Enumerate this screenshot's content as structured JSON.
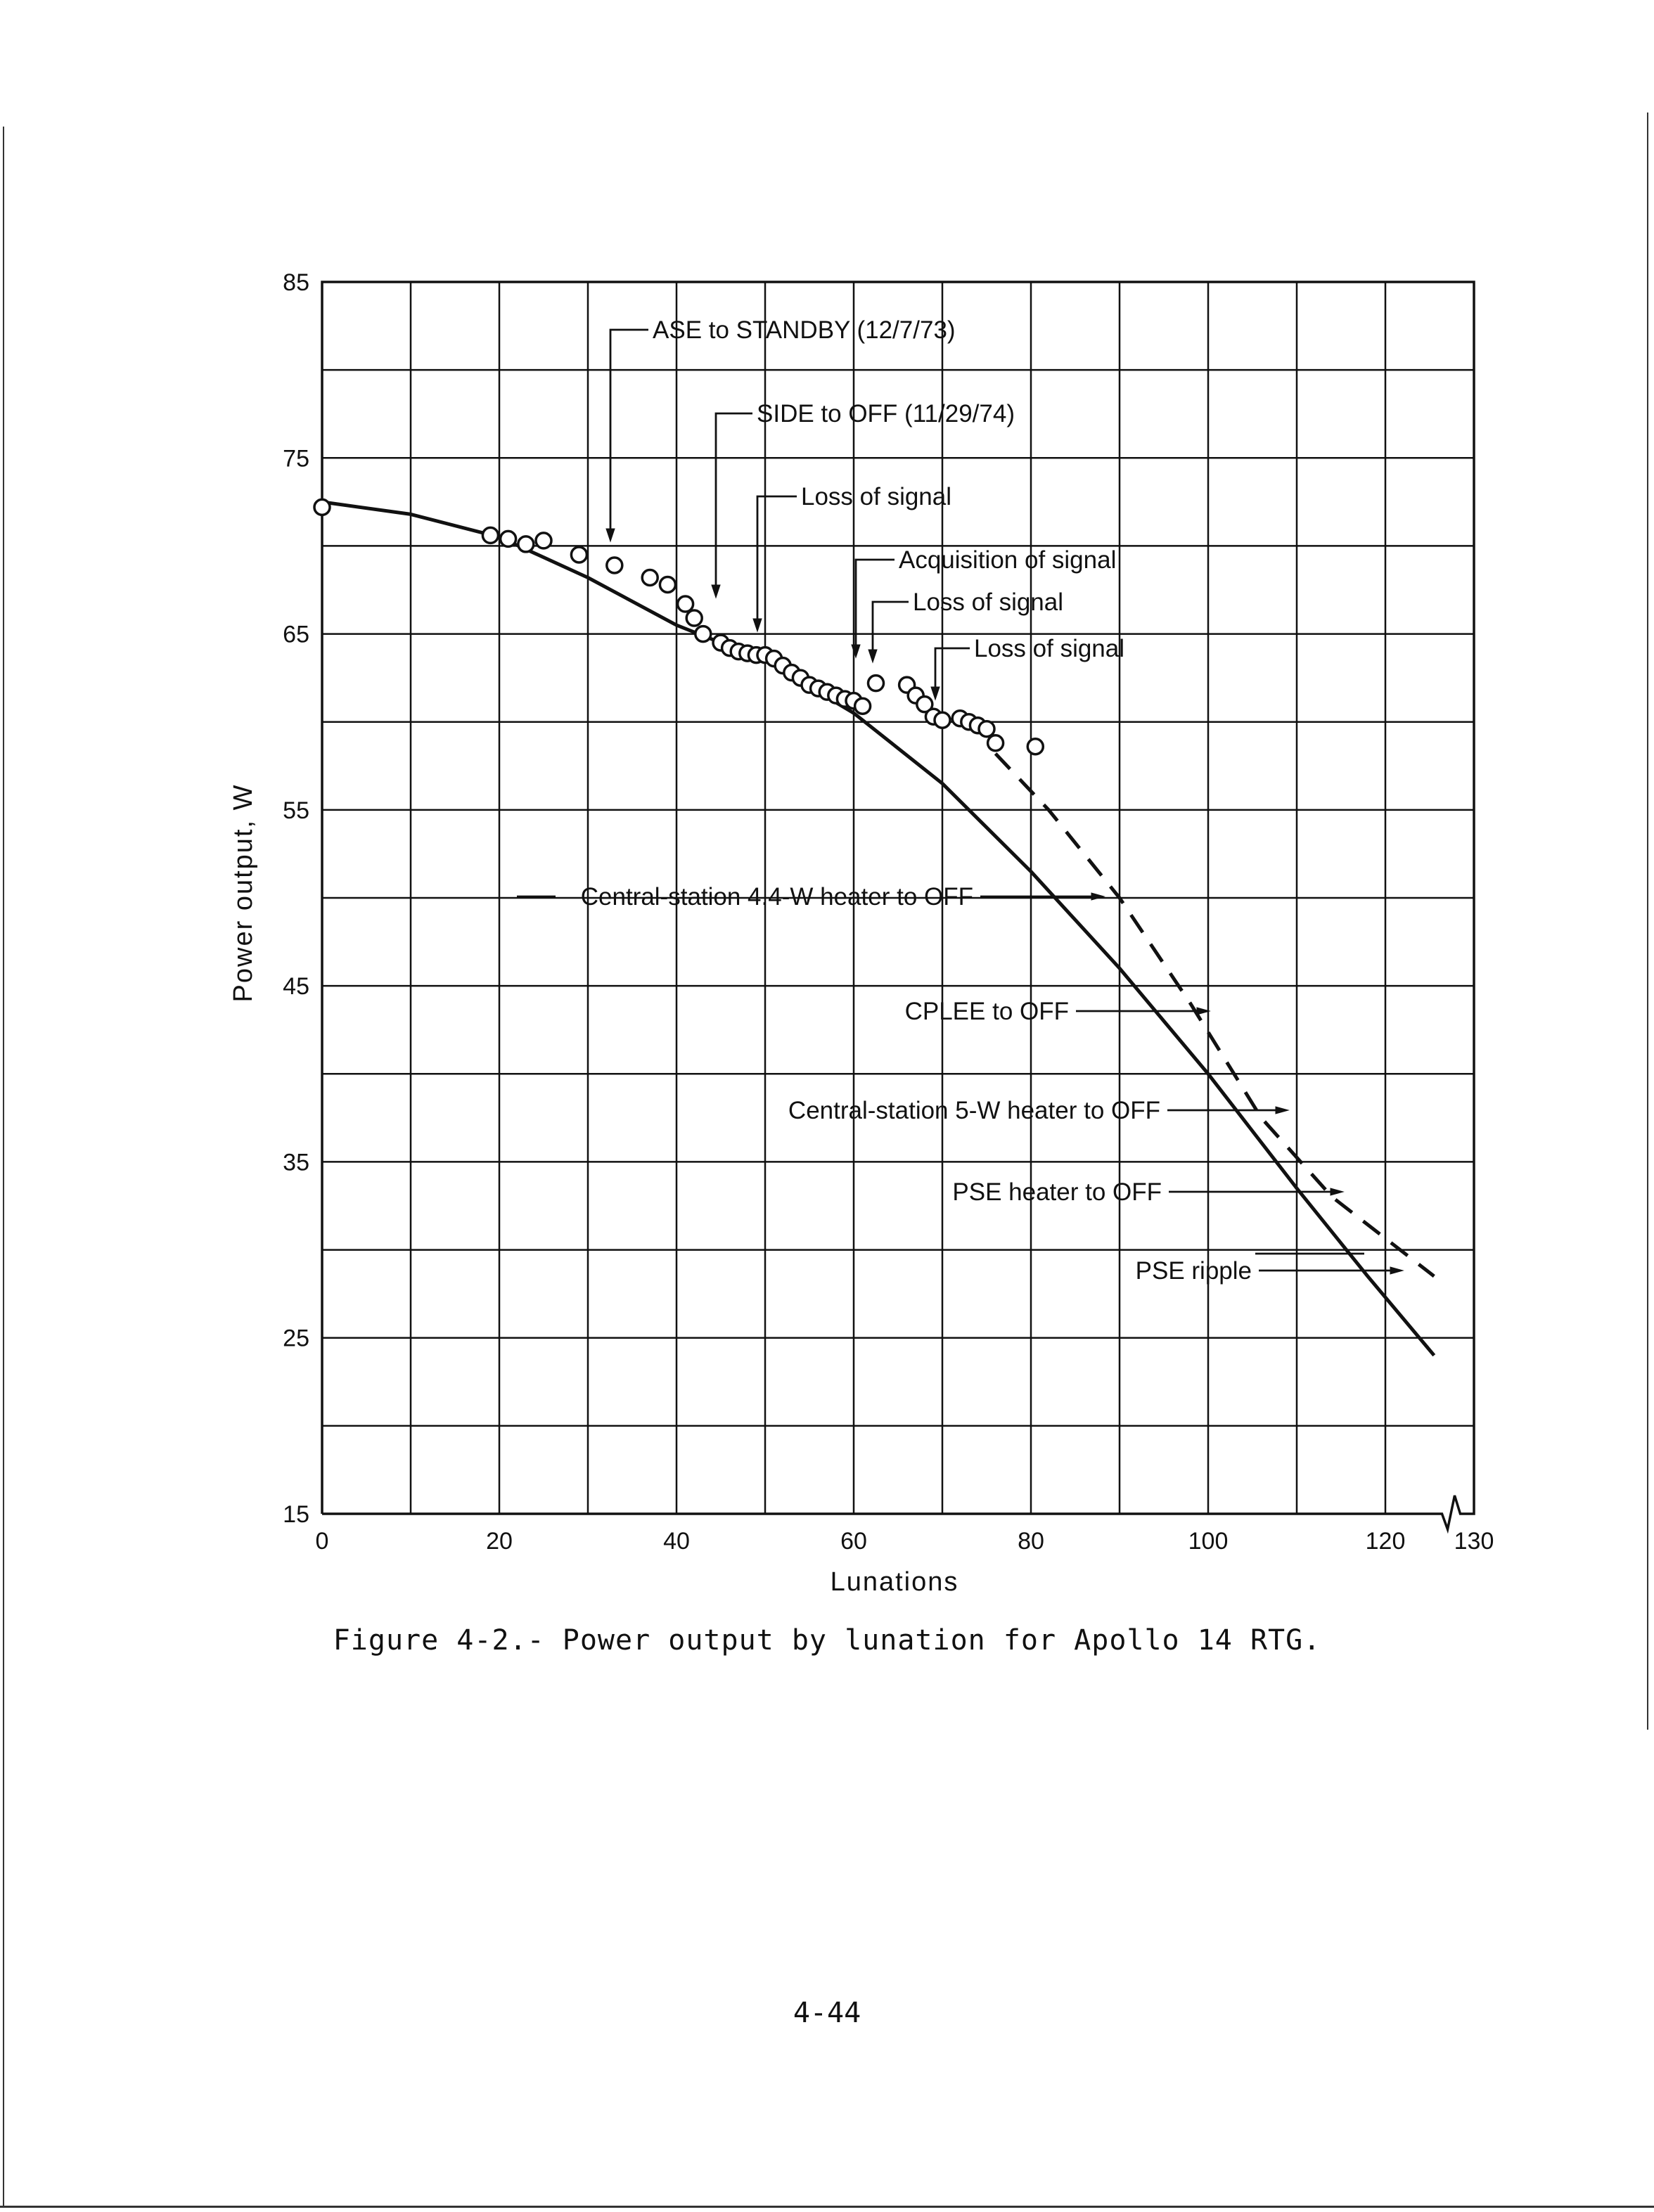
{
  "chart_data": {
    "type": "line",
    "xlabel": "Lunations",
    "ylabel": "Power output, W",
    "xlim": [
      0,
      130
    ],
    "ylim": [
      15,
      85
    ],
    "x_ticks": [
      "0",
      "20",
      "40",
      "60",
      "80",
      "100",
      "120",
      "130"
    ],
    "y_ticks": [
      "15",
      "25",
      "35",
      "45",
      "55",
      "65",
      "75",
      "85"
    ],
    "grid": true,
    "axis_break": "x-axis between 120 and 130",
    "series": [
      {
        "style": "solid",
        "x": [
          0,
          10,
          20,
          30,
          40,
          50,
          60,
          70,
          80,
          90,
          100,
          110,
          118,
          125.5
        ],
        "y": [
          72.5,
          71.8,
          70.5,
          68.2,
          65.5,
          63.5,
          60.5,
          56.5,
          51.5,
          46,
          40,
          33.5,
          28.5,
          24
        ]
      },
      {
        "style": "dashed",
        "x": [
          76,
          82,
          90,
          98,
          106,
          114,
          125.5
        ],
        "y": [
          58.2,
          55,
          50,
          44,
          37.5,
          33,
          28.5
        ]
      },
      {
        "style": "circles",
        "x": [
          0,
          19,
          21,
          23,
          25,
          29,
          33,
          37,
          39,
          41,
          42,
          43,
          45,
          46,
          47,
          48,
          49,
          50,
          51,
          52,
          53,
          54,
          55,
          56,
          57,
          58,
          59,
          60,
          61,
          62.5,
          66,
          67,
          68,
          69,
          70,
          72,
          73,
          74,
          75,
          76,
          80.5
        ],
        "y": [
          72.2,
          70.6,
          70.4,
          70.1,
          70.3,
          69.5,
          68.9,
          68.2,
          67.8,
          66.7,
          65.9,
          65,
          64.5,
          64.2,
          64,
          63.9,
          63.8,
          63.8,
          63.6,
          63.2,
          62.8,
          62.5,
          62.1,
          61.9,
          61.7,
          61.5,
          61.3,
          61.2,
          60.9,
          62.2,
          62.1,
          61.5,
          61,
          60.3,
          60.1,
          60.2,
          60,
          59.8,
          59.6,
          58.8,
          58.6
        ]
      }
    ],
    "annotations": [
      {
        "text": "ASE to STANDBY (12/7/73)",
        "x": 33.5
      },
      {
        "text": "SIDE to OFF (11/29/74)",
        "x": 45.5
      },
      {
        "text": "Loss of signal",
        "x": 50.5
      },
      {
        "text": "Acquisition of signal",
        "x": 61.5
      },
      {
        "text": "Loss of signal",
        "x": 64
      },
      {
        "text": "Loss of signal",
        "x": 70.5
      },
      {
        "text": "Central-station 4.4-W heater to OFF",
        "x": 89
      },
      {
        "text": "CPLEE to OFF",
        "x": 102
      },
      {
        "text": "Central-station 5-W heater to OFF",
        "x": 111
      },
      {
        "text": "PSE heater to OFF",
        "x": 117
      },
      {
        "text": "PSE ripple",
        "x": 124.5
      }
    ]
  },
  "caption": "Figure 4-2.- Power output by lunation for Apollo 14 RTG.",
  "page_number": "4-44"
}
